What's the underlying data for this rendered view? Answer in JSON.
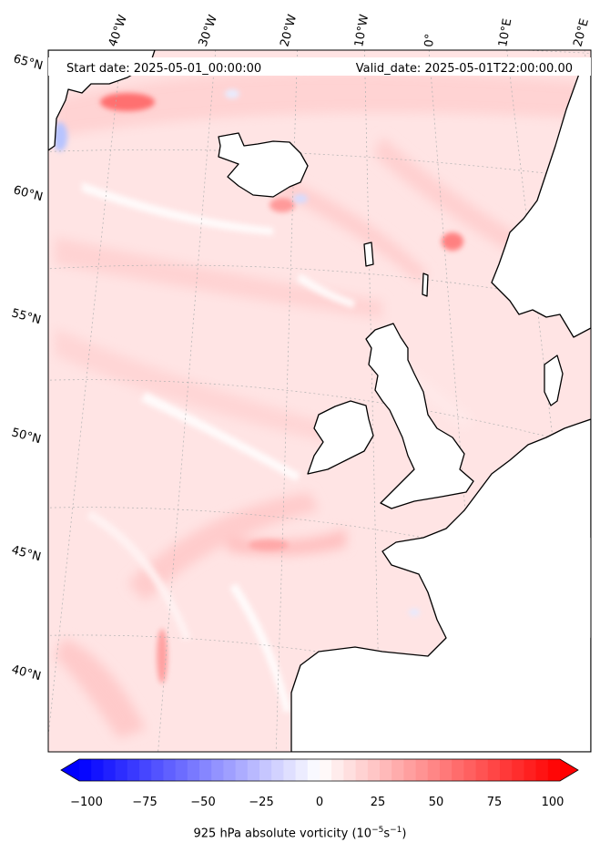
{
  "header": {
    "start_date": "Start date: 2025-05-01_00:00:00",
    "valid_date": "Valid_date: 2025-05-01T22:00:00.00"
  },
  "map": {
    "lon_labels": [
      "40°W",
      "30°W",
      "20°W",
      "10°W",
      "0°",
      "10°E",
      "20°E"
    ],
    "lat_labels": [
      "65°N",
      "60°N",
      "55°N",
      "50°N",
      "45°N",
      "40°N"
    ],
    "field": "925 hPa absolute vorticity",
    "land_color": "#ffffff",
    "coastline_color": "#000000",
    "gridline_color": "#b0b0b0"
  },
  "colorbar": {
    "ticks": [
      "−100",
      "−75",
      "−50",
      "−25",
      "0",
      "25",
      "50",
      "75",
      "100"
    ],
    "min": -100,
    "max": 100,
    "levels": 40,
    "low_color": "#0000ff",
    "mid_color": "#ffffff",
    "high_color": "#ff0000",
    "label_main": "925 hPa absolute vorticity (10",
    "label_exp1": "−5",
    "label_mid": "s",
    "label_exp2": "−1",
    "label_end": ")"
  }
}
